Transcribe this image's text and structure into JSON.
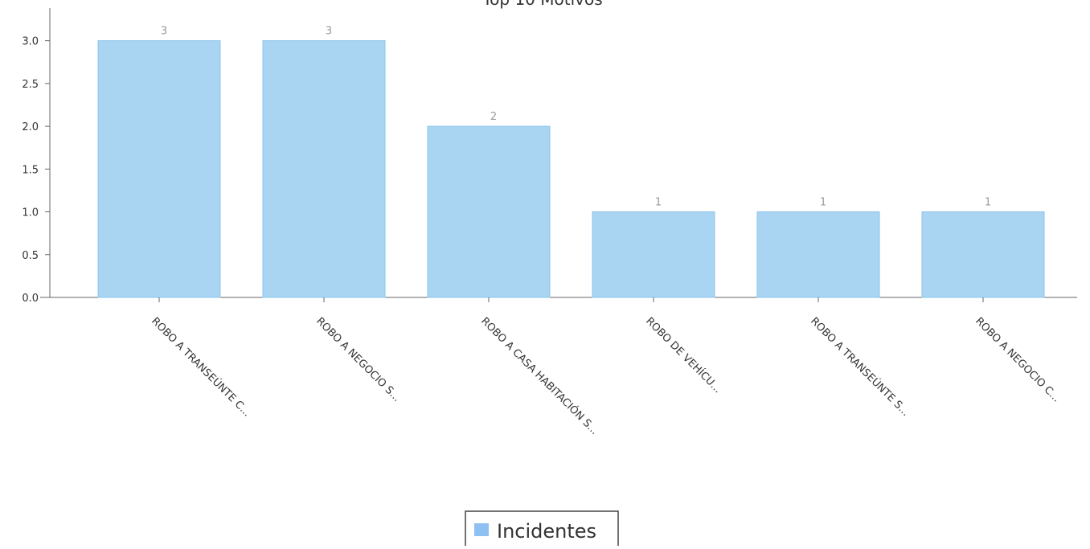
{
  "chart_data": {
    "type": "bar",
    "title": "Top 10 Motivos",
    "categories": [
      "ROBO A TRANSEÚNTE C...",
      "ROBO A NEGOCIO S...",
      "ROBO A CASA HABITACIÓN S...",
      "ROBO DE VEHÍCU...",
      "ROBO A TRANSEÚNTE S...",
      "ROBO A NEGOCIO C..."
    ],
    "series": [
      {
        "name": "Incidentes",
        "values": [
          3,
          3,
          2,
          1,
          1,
          1
        ]
      }
    ],
    "data_labels": [
      "3",
      "3",
      "2",
      "1",
      "1",
      "1"
    ],
    "y_ticks": [
      "0.0",
      "0.5",
      "1.0",
      "1.5",
      "2.0",
      "2.5",
      "3.0"
    ],
    "ylim": [
      0,
      3.1
    ],
    "xlabel": "",
    "ylabel": "",
    "grid": false,
    "legend_position": "bottom-center",
    "colors": {
      "bar": "#a9d4f2",
      "bar_stroke": "#8cc4ec",
      "axis": "#666666",
      "text": "#333333",
      "legend_swatch": "#8fc0f2"
    }
  }
}
